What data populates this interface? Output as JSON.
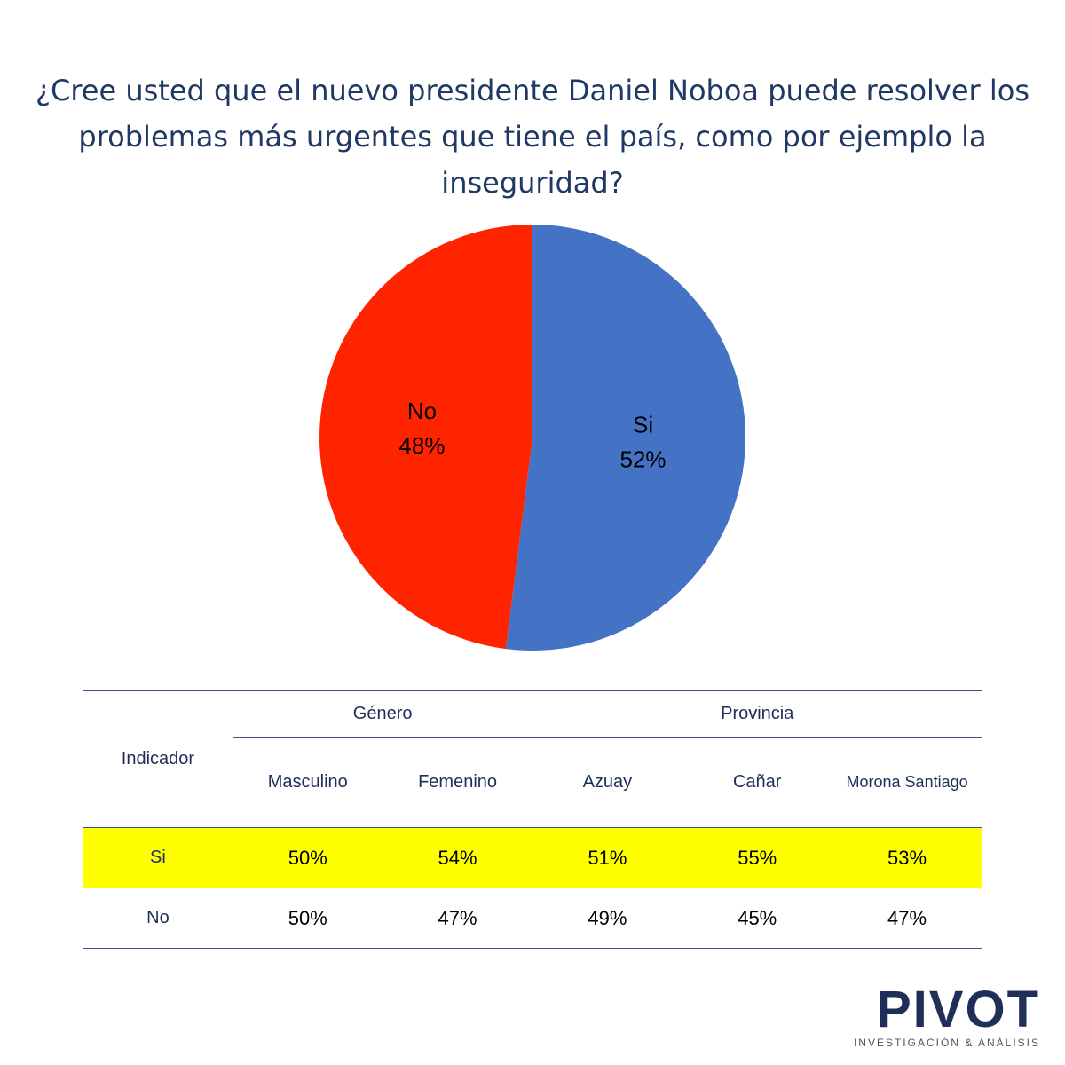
{
  "chart_data": {
    "type": "pie",
    "title": "¿Cree usted que el nuevo presidente Daniel Noboa puede resolver los problemas más urgentes que tiene el país, como por ejemplo la inseguridad?",
    "categories": [
      "Si",
      "No"
    ],
    "values": [
      52,
      48
    ],
    "value_labels": [
      "52%",
      "48%"
    ],
    "colors": [
      "#4472c4",
      "#ff2400"
    ]
  },
  "table": {
    "indicator": "Indicador",
    "groups": [
      "Género",
      "Provincia"
    ],
    "columns": [
      "Masculino",
      "Femenino",
      "Azuay",
      "Cañar",
      "Morona Santiago"
    ],
    "rows": [
      {
        "label": "Si",
        "cells": [
          "50%",
          "54%",
          "51%",
          "55%",
          "53%"
        ]
      },
      {
        "label": "No",
        "cells": [
          "50%",
          "47%",
          "49%",
          "45%",
          "47%"
        ]
      }
    ]
  },
  "logo": {
    "name": "PIVOT",
    "tagline": "INVESTIGACIÓN & ANÁLISIS"
  }
}
